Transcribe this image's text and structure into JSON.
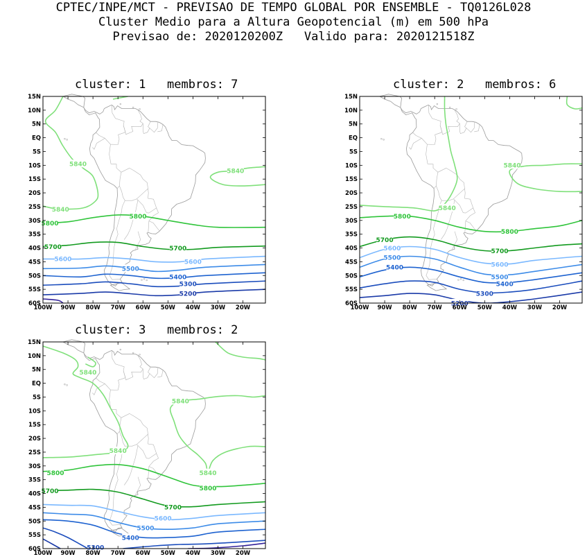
{
  "header": {
    "line1": "CPTEC/INPE/MCT - PREVISAO DE TEMPO GLOBAL POR ENSEMBLE - TQ0126L028",
    "line2": "Cluster Medio para a Altura Geopotencial (m) em 500 hPa",
    "line3": "Previsao de: 2020120200Z   Valido para: 2020121518Z"
  },
  "axes": {
    "lat_labels": [
      "15N",
      "10N",
      "5N",
      "EQ",
      "5S",
      "10S",
      "15S",
      "20S",
      "25S",
      "30S",
      "35S",
      "40S",
      "45S",
      "50S",
      "55S",
      "60S"
    ],
    "lon_labels": [
      "100W",
      "90W",
      "80W",
      "70W",
      "60W",
      "50W",
      "40W",
      "30W",
      "20W"
    ]
  },
  "panels": [
    {
      "title": "cluster: 1   membros: 7",
      "labels": [
        {
          "text": "5840",
          "lon": -86,
          "lat": -9.5,
          "c": "#7fe07a"
        },
        {
          "text": "5840",
          "lon": -23,
          "lat": -12,
          "c": "#7fe07a"
        },
        {
          "text": "5840",
          "lon": -93,
          "lat": -26,
          "c": "#7fe07a"
        },
        {
          "text": "5800",
          "lon": -62,
          "lat": -28.5,
          "c": "#2fc43a"
        },
        {
          "text": "5800",
          "lon": -100,
          "lat": -31,
          "c": "#2fc43a"
        },
        {
          "text": "5700",
          "lon": -96,
          "lat": -39.5,
          "c": "#129a1e"
        },
        {
          "text": "5700",
          "lon": -46,
          "lat": -40,
          "c": "#129a1e"
        },
        {
          "text": "5600",
          "lon": -92,
          "lat": -44,
          "c": "#7ab8ff"
        },
        {
          "text": "5600",
          "lon": -40,
          "lat": -45,
          "c": "#7ab8ff"
        },
        {
          "text": "5500",
          "lon": -65,
          "lat": -47.5,
          "c": "#3c8be8"
        },
        {
          "text": "5400",
          "lon": -46,
          "lat": -50.5,
          "c": "#1d62d0"
        },
        {
          "text": "5300",
          "lon": -42,
          "lat": -53,
          "c": "#1a4cbc"
        },
        {
          "text": "5200",
          "lon": -42,
          "lat": -56.5,
          "c": "#1a3aa8"
        }
      ]
    },
    {
      "title": "cluster: 2   membros: 6",
      "labels": [
        {
          "text": "5840",
          "lon": -39,
          "lat": -10,
          "c": "#7fe07a"
        },
        {
          "text": "5840",
          "lon": -65,
          "lat": -25.5,
          "c": "#7fe07a"
        },
        {
          "text": "5800",
          "lon": -83,
          "lat": -28.5,
          "c": "#2fc43a"
        },
        {
          "text": "5800",
          "lon": -40,
          "lat": -34,
          "c": "#2fc43a"
        },
        {
          "text": "5700",
          "lon": -90,
          "lat": -37,
          "c": "#129a1e"
        },
        {
          "text": "5700",
          "lon": -44,
          "lat": -41,
          "c": "#129a1e"
        },
        {
          "text": "5600",
          "lon": -87,
          "lat": -40,
          "c": "#7ab8ff"
        },
        {
          "text": "5600",
          "lon": -44,
          "lat": -46,
          "c": "#7ab8ff"
        },
        {
          "text": "5500",
          "lon": -87,
          "lat": -43.5,
          "c": "#3c8be8"
        },
        {
          "text": "5500",
          "lon": -44,
          "lat": -50.5,
          "c": "#3c8be8"
        },
        {
          "text": "5400",
          "lon": -86,
          "lat": -47,
          "c": "#1d62d0"
        },
        {
          "text": "5400",
          "lon": -42,
          "lat": -53,
          "c": "#1d62d0"
        },
        {
          "text": "5300",
          "lon": -50,
          "lat": -56.5,
          "c": "#1a4cbc"
        },
        {
          "text": "5200",
          "lon": -60,
          "lat": -60,
          "c": "#1a3aa8"
        }
      ]
    },
    {
      "title": "cluster: 3   membros: 2",
      "labels": [
        {
          "text": "5840",
          "lon": -82,
          "lat": 4,
          "c": "#7fe07a"
        },
        {
          "text": "5840",
          "lon": -45,
          "lat": -6.5,
          "c": "#7fe07a"
        },
        {
          "text": "5840",
          "lon": -70,
          "lat": -24.5,
          "c": "#7fe07a"
        },
        {
          "text": "5840",
          "lon": -34,
          "lat": -32.5,
          "c": "#7fe07a"
        },
        {
          "text": "5800",
          "lon": -95,
          "lat": -32.5,
          "c": "#2fc43a"
        },
        {
          "text": "5800",
          "lon": -34,
          "lat": -38,
          "c": "#2fc43a"
        },
        {
          "text": "5700",
          "lon": -100,
          "lat": -39,
          "c": "#129a1e"
        },
        {
          "text": "5700",
          "lon": -48,
          "lat": -45,
          "c": "#129a1e"
        },
        {
          "text": "5600",
          "lon": -52,
          "lat": -49,
          "c": "#7ab8ff"
        },
        {
          "text": "5500",
          "lon": -59,
          "lat": -52.5,
          "c": "#3c8be8"
        },
        {
          "text": "5400",
          "lon": -65,
          "lat": -56,
          "c": "#1d62d0"
        },
        {
          "text": "5300",
          "lon": -79,
          "lat": -59.5,
          "c": "#1a4cbc"
        }
      ]
    }
  ]
}
